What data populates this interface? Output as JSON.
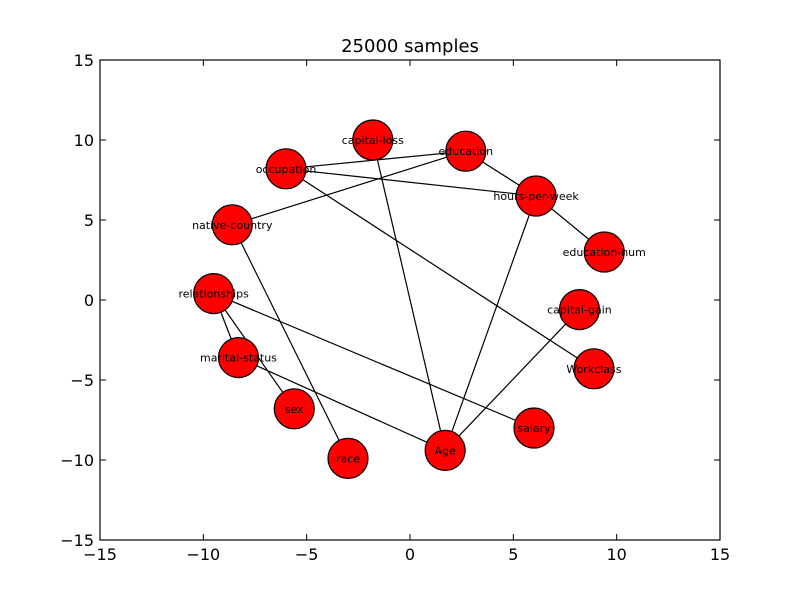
{
  "figure": {
    "title": "25000 samples"
  },
  "axes": {
    "xlim": [
      -15,
      15
    ],
    "ylim": [
      -15,
      15
    ],
    "xticks": [
      -15,
      -10,
      -5,
      0,
      5,
      10,
      15
    ],
    "yticks": [
      -15,
      -10,
      -5,
      0,
      5,
      10,
      15
    ],
    "xtick_labels": [
      "−15",
      "−10",
      "−5",
      "0",
      "5",
      "10",
      "15"
    ],
    "ytick_labels": [
      "−15",
      "−10",
      "−5",
      "0",
      "5",
      "10",
      "15"
    ]
  },
  "colors": {
    "node_fill": "#ff0000",
    "edge": "#000000"
  },
  "nodes": [
    {
      "id": "capital-loss",
      "label": "capital-loss",
      "x": -1.8,
      "y": 10.0
    },
    {
      "id": "education",
      "label": "education",
      "x": 2.7,
      "y": 9.3
    },
    {
      "id": "occupation",
      "label": "occupation",
      "x": -6.0,
      "y": 8.2
    },
    {
      "id": "hours-per-week",
      "label": "hours-per-week",
      "x": 6.1,
      "y": 6.5
    },
    {
      "id": "native-country",
      "label": "native-country",
      "x": -8.6,
      "y": 4.7
    },
    {
      "id": "education-num",
      "label": "education-num",
      "x": 9.4,
      "y": 3.0
    },
    {
      "id": "relationships",
      "label": "relationships",
      "x": -9.5,
      "y": 0.4
    },
    {
      "id": "capital-gain",
      "label": "capital-gain",
      "x": 8.2,
      "y": -0.6
    },
    {
      "id": "marital-status",
      "label": "marital-status",
      "x": -8.3,
      "y": -3.6
    },
    {
      "id": "Workclass",
      "label": "Workclass",
      "x": 8.9,
      "y": -4.3
    },
    {
      "id": "sex",
      "label": "sex",
      "x": -5.6,
      "y": -6.8
    },
    {
      "id": "salary",
      "label": "salary",
      "x": 6.0,
      "y": -8.0
    },
    {
      "id": "Age",
      "label": "Age",
      "x": 1.7,
      "y": -9.4
    },
    {
      "id": "race",
      "label": "race",
      "x": -3.0,
      "y": -9.9
    }
  ],
  "edges": [
    [
      "occupation",
      "education"
    ],
    [
      "occupation",
      "hours-per-week"
    ],
    [
      "occupation",
      "Workclass"
    ],
    [
      "education",
      "hours-per-week"
    ],
    [
      "education",
      "native-country"
    ],
    [
      "hours-per-week",
      "education-num"
    ],
    [
      "hours-per-week",
      "Age"
    ],
    [
      "capital-loss",
      "Age"
    ],
    [
      "native-country",
      "race"
    ],
    [
      "relationships",
      "marital-status"
    ],
    [
      "relationships",
      "sex"
    ],
    [
      "relationships",
      "salary"
    ],
    [
      "marital-status",
      "Age"
    ],
    [
      "capital-gain",
      "Age"
    ]
  ]
}
